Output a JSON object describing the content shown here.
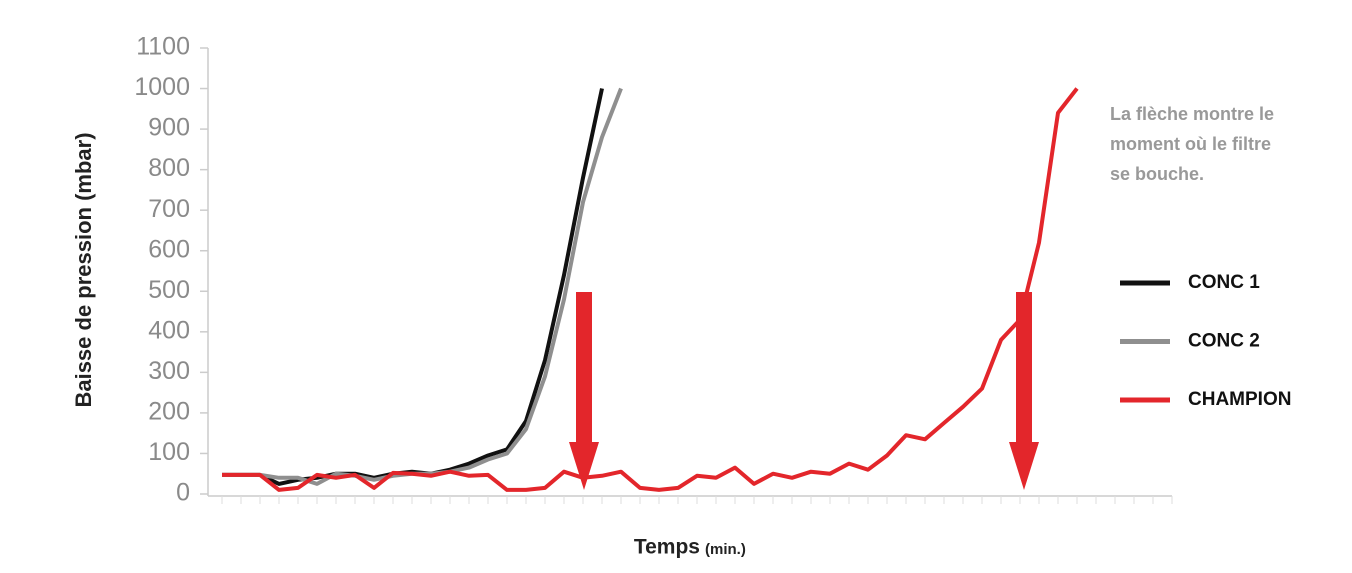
{
  "chart_data": {
    "type": "line",
    "ylabel": "Baisse de pression (mbar)",
    "xlabel": "Temps",
    "xlabel_unit": "(min.)",
    "annotation": [
      "La flèche montre le",
      "moment où le filtre",
      "se bouche."
    ],
    "categories": [
      null,
      null,
      null,
      null,
      null,
      null,
      null,
      null,
      null,
      null,
      null,
      null,
      null,
      null,
      null,
      null,
      null,
      null,
      null,
      null,
      null,
      null,
      null,
      null,
      null,
      null,
      null,
      null,
      null,
      null,
      null,
      null,
      null,
      null,
      null,
      null,
      null,
      null,
      null,
      null,
      null,
      null,
      null,
      null,
      null,
      null,
      null,
      null,
      null,
      null,
      null
    ],
    "ylim": [
      0,
      1100
    ],
    "yticks": [
      0,
      100,
      200,
      300,
      400,
      500,
      600,
      700,
      800,
      900,
      1000,
      1100
    ],
    "series": [
      {
        "name": "CONC 1",
        "color": "#111111",
        "values": [
          47,
          47,
          47,
          25,
          35,
          40,
          50,
          50,
          40,
          50,
          55,
          50,
          60,
          75,
          95,
          110,
          180,
          330,
          540,
          780,
          1000,
          null,
          null,
          null,
          null,
          null,
          null,
          null,
          null,
          null,
          null,
          null,
          null,
          null,
          null,
          null,
          null,
          null,
          null,
          null,
          null,
          null,
          null,
          null,
          null,
          null,
          null,
          null,
          null,
          null,
          null
        ]
      },
      {
        "name": "CONC 2",
        "color": "#8f8f8f",
        "values": [
          47,
          47,
          47,
          40,
          40,
          25,
          50,
          45,
          35,
          45,
          50,
          50,
          55,
          65,
          85,
          100,
          160,
          290,
          480,
          720,
          880,
          1000,
          null,
          null,
          null,
          null,
          null,
          null,
          null,
          null,
          null,
          null,
          null,
          null,
          null,
          null,
          null,
          null,
          null,
          null,
          null,
          null,
          null,
          null,
          null,
          null,
          null,
          null,
          null,
          null,
          null
        ]
      },
      {
        "name": "CHAMPION",
        "color": "#e3262b",
        "values": [
          47,
          47,
          47,
          10,
          15,
          47,
          40,
          47,
          15,
          52,
          50,
          45,
          55,
          45,
          47,
          10,
          10,
          15,
          55,
          40,
          45,
          55,
          15,
          10,
          15,
          45,
          40,
          65,
          25,
          50,
          40,
          55,
          50,
          75,
          60,
          95,
          145,
          135,
          175,
          215,
          260,
          380,
          430,
          620,
          940,
          1000,
          null,
          null,
          null,
          null,
          null
        ]
      }
    ]
  }
}
